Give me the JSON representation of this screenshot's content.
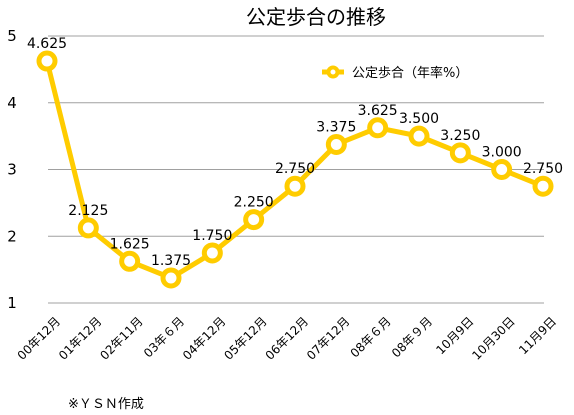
{
  "chart_data": {
    "type": "line",
    "title": "公定歩合の推移",
    "categories": [
      "00年12月",
      "01年12月",
      "02年11月",
      "03年６月",
      "04年12月",
      "05年12月",
      "06年12月",
      "07年12月",
      "08年６月",
      "08年９月",
      "10月9日",
      "10月30日",
      "11月9日"
    ],
    "series": [
      {
        "name": "公定歩合（年率%）",
        "values": [
          4.625,
          2.125,
          1.625,
          1.375,
          1.75,
          2.25,
          2.75,
          3.375,
          3.625,
          3.5,
          3.25,
          3.0,
          2.75
        ],
        "labels": [
          "4.625",
          "2.125",
          "1.625",
          "1.375",
          "1.750",
          "2.250",
          "2.750",
          "3.375",
          "3.625",
          "3.500",
          "3.250",
          "3.000",
          "2.750"
        ]
      }
    ],
    "ylim": [
      1,
      5
    ],
    "yticks": [
      "1",
      "2",
      "3",
      "4",
      "5"
    ],
    "grid": true,
    "legend_position": "top-right",
    "xlabel": "",
    "ylabel": "",
    "note": "※ＹＳＮ作成",
    "colors": {
      "line": "#FFCC00",
      "marker_fill": "#FFFFFF",
      "grid": "#A0A0A0"
    }
  }
}
